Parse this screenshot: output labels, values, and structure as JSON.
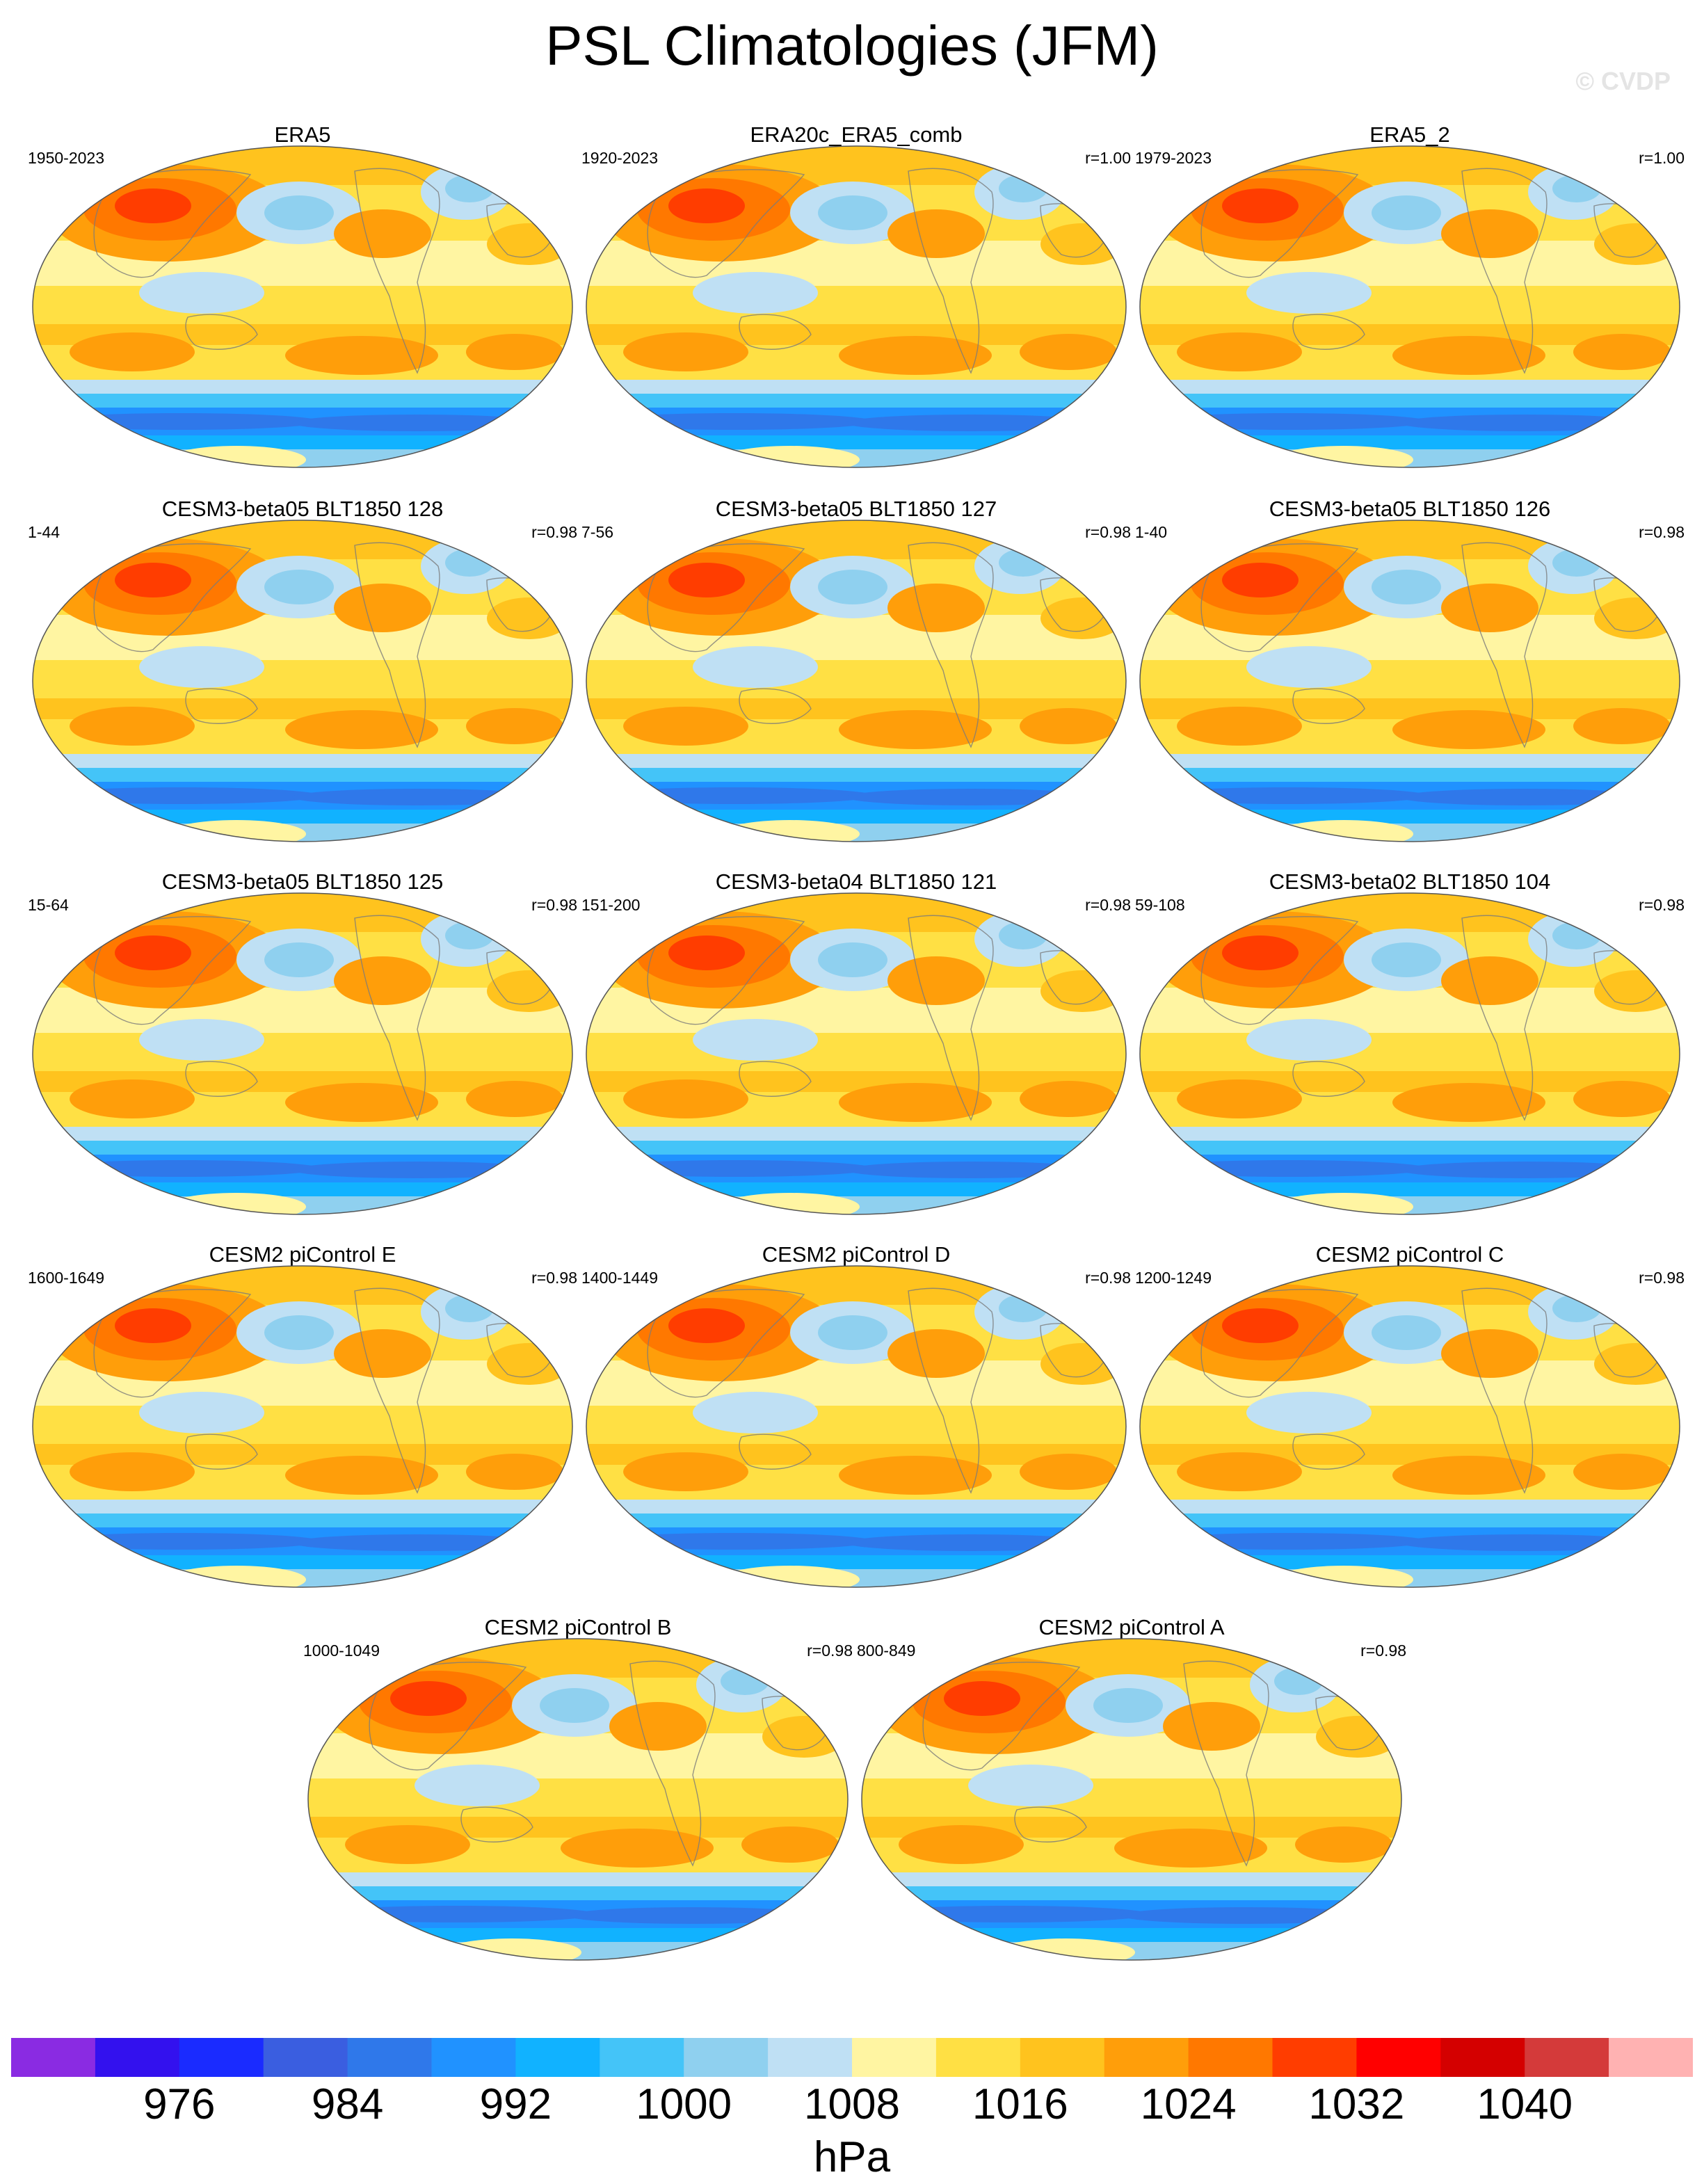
{
  "title": "PSL Climatologies (JFM)",
  "watermark": "© CVDP",
  "panels": [
    {
      "title": "ERA5",
      "period": "1950-2023",
      "corr": ""
    },
    {
      "title": "ERA20c_ERA5_comb",
      "period": "1920-2023",
      "corr": "r=1.00"
    },
    {
      "title": "ERA5_2",
      "period": "1979-2023",
      "corr": "r=1.00"
    },
    {
      "title": "CESM3-beta05 BLT1850 128",
      "period": "1-44",
      "corr": "r=0.98"
    },
    {
      "title": "CESM3-beta05 BLT1850 127",
      "period": "7-56",
      "corr": "r=0.98"
    },
    {
      "title": "CESM3-beta05 BLT1850 126",
      "period": "1-40",
      "corr": "r=0.98"
    },
    {
      "title": "CESM3-beta05 BLT1850 125",
      "period": "15-64",
      "corr": "r=0.98"
    },
    {
      "title": "CESM3-beta04 BLT1850 121",
      "period": "151-200",
      "corr": "r=0.98"
    },
    {
      "title": "CESM3-beta02 BLT1850 104",
      "period": "59-108",
      "corr": "r=0.98"
    },
    {
      "title": "CESM2 piControl E",
      "period": "1600-1649",
      "corr": "r=0.98"
    },
    {
      "title": "CESM2 piControl D",
      "period": "1400-1449",
      "corr": "r=0.98"
    },
    {
      "title": "CESM2 piControl C",
      "period": "1200-1249",
      "corr": "r=0.98"
    },
    {
      "title": "CESM2 piControl B",
      "period": "1000-1049",
      "corr": "r=0.98"
    },
    {
      "title": "CESM2 piControl A",
      "period": "800-849",
      "corr": "r=0.98"
    }
  ],
  "colorbar": {
    "colors": [
      "#8a2be2",
      "#3311ee",
      "#1a2bff",
      "#3a5ee0",
      "#2f78ea",
      "#2092ff",
      "#11b2ff",
      "#44c4f8",
      "#8fd0ef",
      "#bfe0f4",
      "#fff5a2",
      "#ffe044",
      "#ffc31e",
      "#ff9e0a",
      "#ff7800",
      "#ff3d00",
      "#ff0000",
      "#d40000",
      "#d43a3a",
      "#ffb2b2"
    ],
    "labels": [
      "976",
      "984",
      "992",
      "1000",
      "1008",
      "1016",
      "1024",
      "1032",
      "1040"
    ],
    "units": "hPa"
  }
}
